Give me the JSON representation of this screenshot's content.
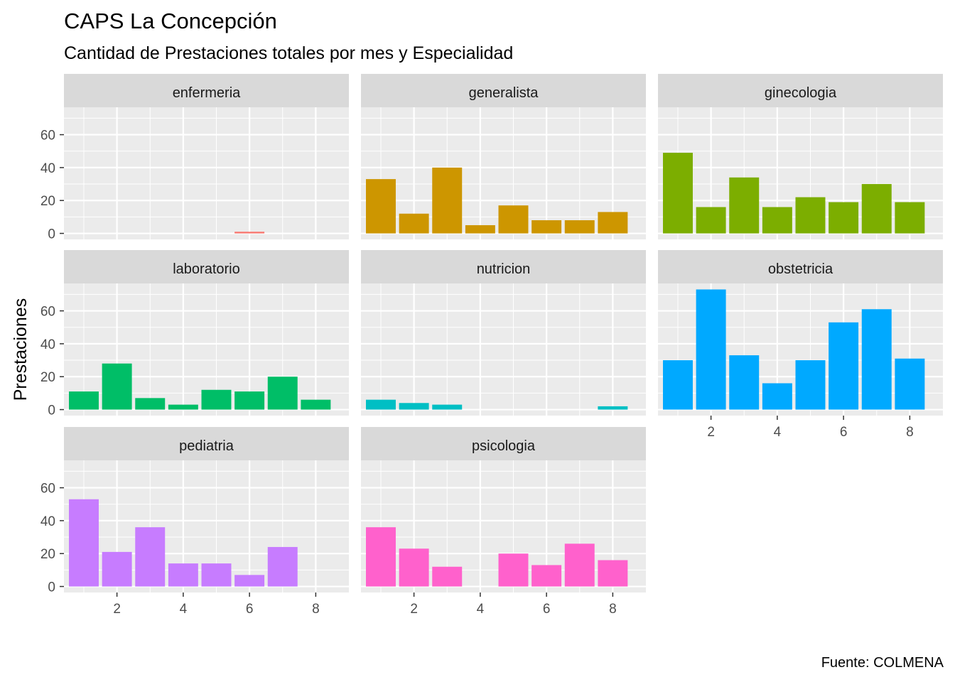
{
  "title": "CAPS La Concepción",
  "subtitle": "Cantidad de Prestaciones totales por mes y Especialidad",
  "caption": "Fuente: COLMENA",
  "chart_data": {
    "type": "bar",
    "facet_by": "Especialidad",
    "xlabel": "",
    "ylabel": "Prestaciones",
    "x_ticks": [
      2,
      4,
      6,
      8
    ],
    "y_ticks": [
      0,
      20,
      40,
      60
    ],
    "xlim": [
      0.4,
      9
    ],
    "ylim": [
      -3.65,
      76.65
    ],
    "grid": true,
    "legend": "none",
    "panels": [
      {
        "name": "enfermeria",
        "color": "#F8766D",
        "x": [
          6
        ],
        "values": [
          1
        ]
      },
      {
        "name": "generalista",
        "color": "#CD9600",
        "x": [
          1,
          2,
          3,
          4,
          5,
          6,
          7,
          8
        ],
        "values": [
          33,
          12,
          40,
          5,
          17,
          8,
          8,
          13
        ]
      },
      {
        "name": "ginecologia",
        "color": "#7CAE00",
        "x": [
          1,
          2,
          3,
          4,
          5,
          6,
          7,
          8
        ],
        "values": [
          49,
          16,
          34,
          16,
          22,
          19,
          30,
          19
        ]
      },
      {
        "name": "laboratorio",
        "color": "#00BE67",
        "x": [
          1,
          2,
          3,
          4,
          5,
          6,
          7,
          8
        ],
        "values": [
          11,
          28,
          7,
          3,
          12,
          11,
          20,
          6
        ]
      },
      {
        "name": "nutricion",
        "color": "#00BFC4",
        "x": [
          1,
          2,
          3,
          8
        ],
        "values": [
          6,
          4,
          3,
          2
        ]
      },
      {
        "name": "obstetricia",
        "color": "#00A9FF",
        "x": [
          1,
          2,
          3,
          4,
          5,
          6,
          7,
          8
        ],
        "values": [
          30,
          73,
          33,
          16,
          30,
          53,
          61,
          31
        ]
      },
      {
        "name": "pediatria",
        "color": "#C77CFF",
        "x": [
          1,
          2,
          3,
          4,
          5,
          6,
          7
        ],
        "values": [
          53,
          21,
          36,
          14,
          14,
          7,
          24
        ]
      },
      {
        "name": "psicologia",
        "color": "#FF61CC",
        "x": [
          1,
          2,
          3,
          5,
          6,
          7,
          8
        ],
        "values": [
          36,
          23,
          12,
          20,
          13,
          26,
          16
        ]
      }
    ]
  }
}
